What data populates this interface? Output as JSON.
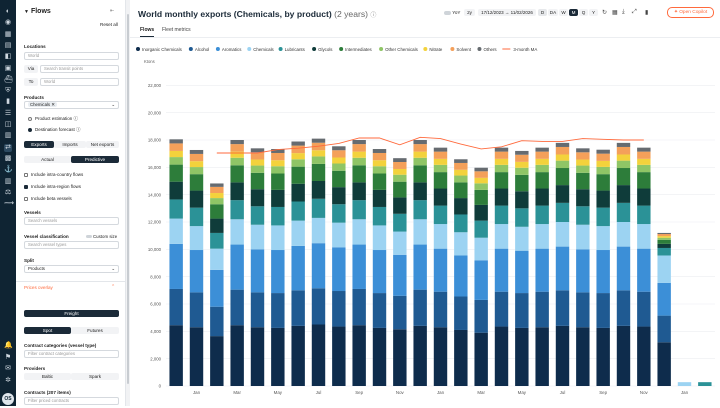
{
  "rail": {
    "icons": [
      "logo-icon",
      "map-icon",
      "grid-icon",
      "analytics-icon",
      "chart-icon",
      "dashboard-icon",
      "ship-icon",
      "shield-icon",
      "bookmark-icon",
      "list-icon",
      "stack-icon",
      "bar-chart-icon",
      "flows-icon",
      "cargo-icon",
      "freight-icon",
      "building-icon",
      "balance-icon",
      "route-icon",
      "bell-icon",
      "flag-icon",
      "chat-icon",
      "settings-icon"
    ],
    "avatar": "OS"
  },
  "sidebar": {
    "title": "Flows",
    "reset": "Reset all",
    "locations_label": "Locations",
    "location_value": "World",
    "via_label": "Via",
    "via_placeholder": "Search transit points",
    "to_label": "To",
    "to_value": "World",
    "products_label": "Products",
    "product_chip": "Chemicals",
    "product_estimation": "Product estimation",
    "destination_forecast": "Destination forecast",
    "flow_tabs": [
      "Exports",
      "Imports",
      "Net exports"
    ],
    "mode_tabs": [
      "Actual",
      "Predictive"
    ],
    "include_intra_country": "Include intra-country flows",
    "include_intra_region": "Include intra-region flows",
    "include_beta": "Include beta vessels",
    "vessels_label": "Vessels",
    "vessels_placeholder": "Search vessels",
    "vessel_class_label": "Vessel classification",
    "custom_size": "Custom size",
    "vessel_class_placeholder": "Search vessel types",
    "split_label": "Split",
    "split_value": "Products",
    "prices_overlay": "Prices overlay",
    "freight_button": "Freight",
    "spot_tabs": [
      "Spot",
      "Futures"
    ],
    "contract_categories_label": "Contract categories (vessel type)",
    "contract_categories_placeholder": "Filter contract categories",
    "providers_label": "Providers",
    "provider_tabs": [
      "Baltic",
      "Spark"
    ],
    "contracts_label": "Contracts (207 items)",
    "contracts_placeholder": "Filter priced contracts"
  },
  "header": {
    "title": "World monthly exports (Chemicals, by product)",
    "subtitle": "(2 years)",
    "yoy": "YoY",
    "range_short": "2y",
    "date_from": "17/12/2023",
    "arrow": "→",
    "date_to": "11/02/2026",
    "granularity": [
      "D",
      "DA",
      "W",
      "M",
      "Q",
      "Y"
    ],
    "selected_granularity": "M",
    "copilot": "Open Copilot"
  },
  "tabs": [
    "Flows",
    "Fleet metrics"
  ],
  "colors": {
    "accent": "#ff6a3d",
    "dark": "#1b2a38",
    "sidebar_rail": "#0f2433"
  },
  "chart_data": {
    "type": "bar",
    "stacked": true,
    "ylabel": "Ktons",
    "ylim": [
      0,
      24000
    ],
    "yticks": [
      0,
      2000,
      4000,
      6000,
      8000,
      10000,
      12000,
      14000,
      16000,
      18000,
      20000,
      22000
    ],
    "ytick_labels": [
      "0",
      "2,000",
      "4,000",
      "6,000",
      "8,000",
      "10,000",
      "12,000",
      "14,000",
      "16,000",
      "18,000",
      "20,000",
      "22,000"
    ],
    "categories": [
      "Dec 23",
      "Jan 24",
      "Feb",
      "Mar",
      "Apr",
      "May",
      "Jun",
      "Jul",
      "Aug",
      "Sep",
      "Oct",
      "Nov",
      "Dec",
      "Jan 25",
      "Feb",
      "Mar",
      "Apr",
      "May",
      "Jun",
      "Jul",
      "Aug",
      "Sep",
      "Oct",
      "Nov",
      "Dec",
      "Jan 26",
      "Feb"
    ],
    "x_tick_labels": [
      "Jan",
      "Mar",
      "May",
      "Jul",
      "Sep",
      "Nov",
      "Jan",
      "Mar",
      "May",
      "Jul",
      "Sep",
      "Nov",
      "Jan"
    ],
    "x_tick_indices": [
      1,
      3,
      5,
      7,
      9,
      11,
      13,
      15,
      17,
      19,
      21,
      23,
      25
    ],
    "series": [
      {
        "name": "Inorganic Chemicals",
        "color": "#0e2c4c",
        "values": [
          4450,
          4300,
          3650,
          4450,
          4300,
          4250,
          4400,
          4500,
          4350,
          4450,
          4250,
          4150,
          4400,
          4300,
          4100,
          3900,
          4350,
          4250,
          4300,
          4400,
          4300,
          4250,
          4400,
          4350,
          3200,
          0,
          0
        ]
      },
      {
        "name": "Alcohol",
        "color": "#1f5a92",
        "values": [
          2650,
          2550,
          2150,
          2600,
          2550,
          2550,
          2600,
          2650,
          2600,
          2650,
          2550,
          2450,
          2650,
          2600,
          2450,
          2400,
          2550,
          2550,
          2600,
          2600,
          2550,
          2550,
          2600,
          2550,
          1950,
          0,
          0
        ]
      },
      {
        "name": "Aromatics",
        "color": "#3c8fd7",
        "values": [
          3300,
          3100,
          2700,
          3300,
          3150,
          3150,
          3250,
          3300,
          3200,
          3250,
          3150,
          3000,
          3300,
          3150,
          3000,
          2900,
          3150,
          3100,
          3150,
          3200,
          3150,
          3150,
          3200,
          3150,
          2400,
          0,
          0
        ]
      },
      {
        "name": "Chemicals",
        "color": "#9cd3f2",
        "values": [
          1850,
          1750,
          1550,
          1850,
          1800,
          1800,
          1850,
          1850,
          1800,
          1850,
          1800,
          1700,
          1850,
          1800,
          1700,
          1650,
          1800,
          1750,
          1800,
          1800,
          1800,
          1750,
          1800,
          1800,
          2000,
          280,
          0
        ]
      },
      {
        "name": "Lubricants",
        "color": "#2b9297",
        "values": [
          1400,
          1350,
          1150,
          1400,
          1350,
          1350,
          1400,
          1400,
          1350,
          1400,
          1350,
          1300,
          1400,
          1350,
          1300,
          1250,
          1350,
          1350,
          1350,
          1400,
          1350,
          1350,
          1400,
          1350,
          550,
          0,
          280
        ]
      },
      {
        "name": "Glycols",
        "color": "#0f3c3a",
        "values": [
          1300,
          1250,
          1050,
          1300,
          1250,
          1250,
          1300,
          1300,
          1250,
          1300,
          1250,
          1200,
          1300,
          1250,
          1200,
          1150,
          1250,
          1250,
          1250,
          1300,
          1250,
          1250,
          1300,
          1250,
          300,
          0,
          0
        ]
      },
      {
        "name": "Intermediates",
        "color": "#2d7d3a",
        "values": [
          1250,
          1200,
          1050,
          1250,
          1200,
          1200,
          1250,
          1250,
          1200,
          1250,
          1200,
          1150,
          1250,
          1200,
          1150,
          1100,
          1200,
          1200,
          1200,
          1250,
          1200,
          1200,
          1250,
          1200,
          300,
          0,
          0
        ]
      },
      {
        "name": "Other Chemicals",
        "color": "#8fc566",
        "values": [
          550,
          520,
          450,
          550,
          530,
          530,
          540,
          550,
          530,
          550,
          530,
          510,
          550,
          530,
          500,
          480,
          530,
          520,
          530,
          540,
          530,
          530,
          540,
          530,
          150,
          0,
          0
        ]
      },
      {
        "name": "Nitrate",
        "color": "#f3d23c",
        "values": [
          450,
          430,
          370,
          450,
          440,
          440,
          450,
          450,
          440,
          450,
          440,
          420,
          450,
          440,
          420,
          400,
          440,
          430,
          440,
          450,
          440,
          440,
          450,
          440,
          120,
          0,
          0
        ]
      },
      {
        "name": "Solvent",
        "color": "#f4a05a",
        "values": [
          550,
          530,
          450,
          550,
          530,
          530,
          550,
          550,
          530,
          550,
          530,
          510,
          550,
          530,
          500,
          480,
          530,
          520,
          530,
          550,
          530,
          530,
          550,
          530,
          150,
          0,
          0
        ]
      },
      {
        "name": "Others",
        "color": "#666b70",
        "values": [
          300,
          290,
          250,
          300,
          290,
          290,
          300,
          300,
          290,
          300,
          290,
          280,
          300,
          290,
          270,
          260,
          290,
          280,
          290,
          300,
          290,
          290,
          300,
          290,
          80,
          0,
          0
        ]
      }
    ],
    "moving_average": {
      "name": "3-month MA",
      "color": "#ff6a3d",
      "start_index": 2,
      "values": [
        17050,
        17050,
        17050,
        17300,
        17400,
        17550,
        17750,
        18150,
        18150,
        17650,
        18200,
        18100,
        17700,
        17350,
        17500,
        17950,
        17900,
        17900,
        18100,
        18050,
        18000,
        18000
      ]
    }
  }
}
